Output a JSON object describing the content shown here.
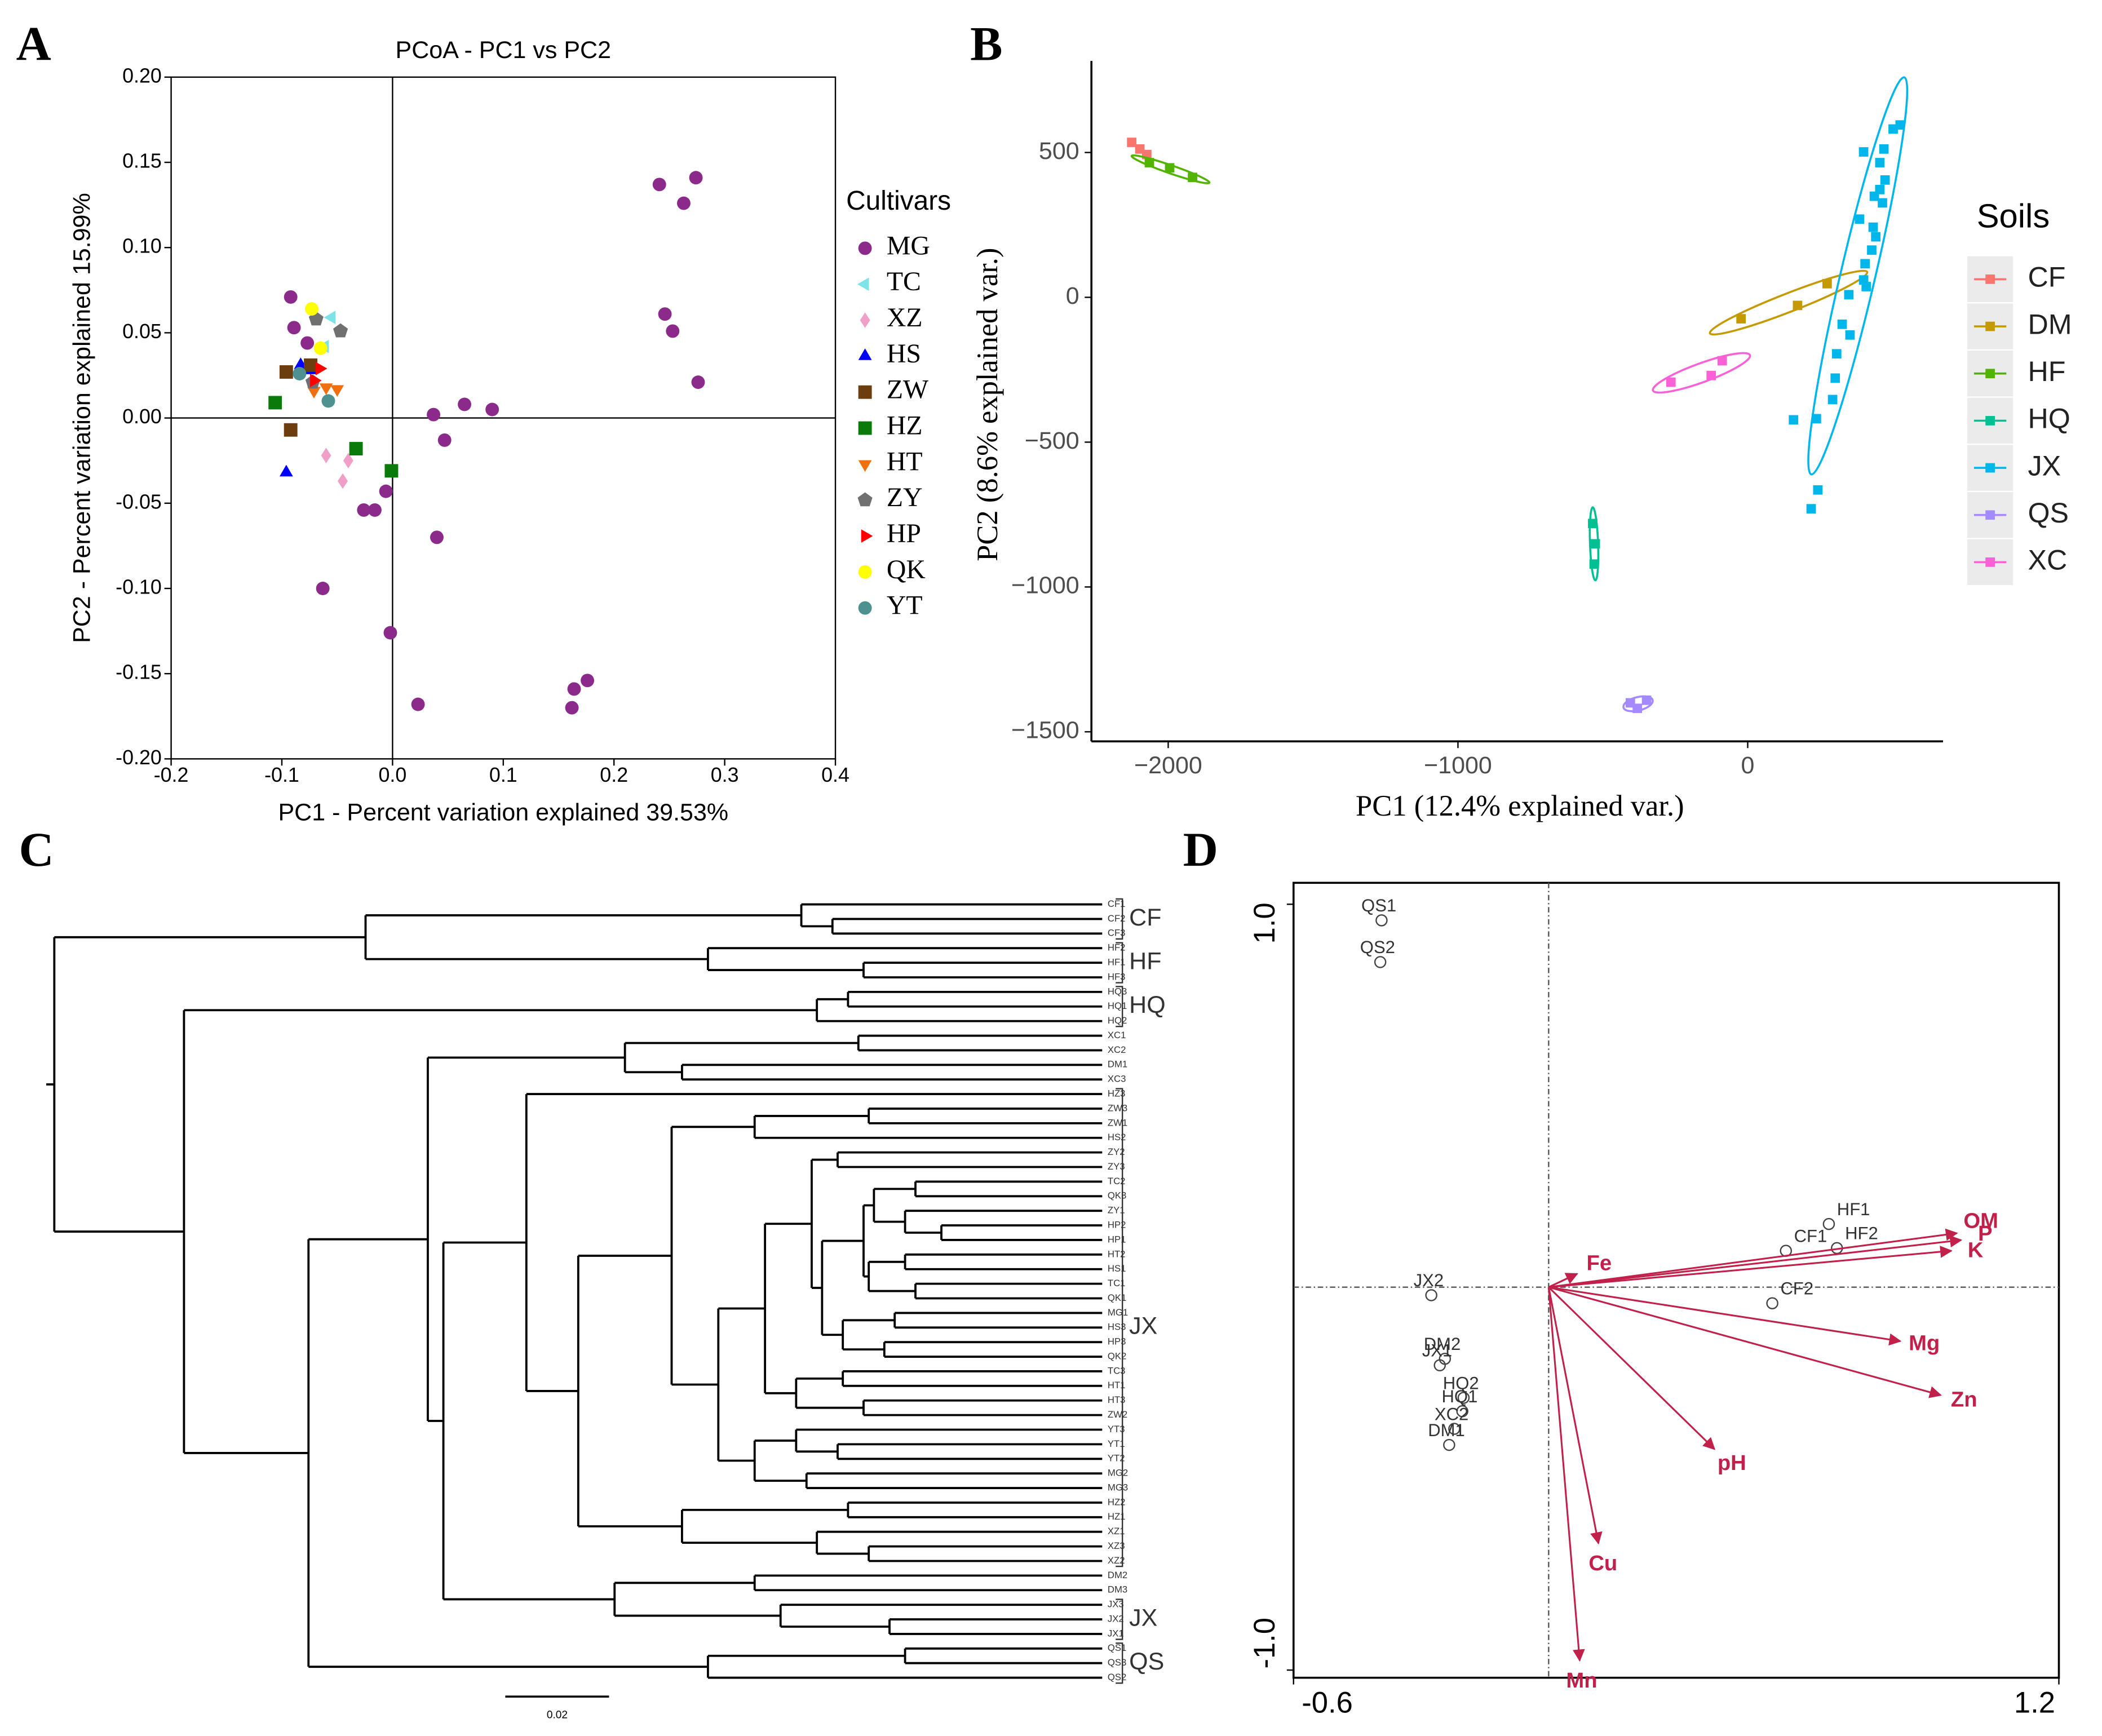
{
  "chart_data": [
    {
      "type": "scatter",
      "panel": "A",
      "title": "PCoA - PC1 vs PC2",
      "xlabel": "PC1 - Percent variation explained 39.53%",
      "ylabel": "PC2 - Percent variation explained 15.99%",
      "xlim": [
        -0.2,
        0.4
      ],
      "ylim": [
        -0.2,
        0.2
      ],
      "xticks": [
        -0.2,
        -0.1,
        {
          "value": 0,
          "label": "0.0"
        },
        0.1,
        0.2,
        0.3,
        0.4
      ],
      "yticks": [
        {
          "value": 0.2,
          "label": "0.20"
        },
        {
          "value": 0.15,
          "label": "0.15"
        },
        {
          "value": 0.1,
          "label": "0.10"
        },
        {
          "value": 0.05,
          "label": "0.05"
        },
        {
          "value": 0,
          "label": "0.00"
        },
        {
          "value": -0.05,
          "label": "-0.05"
        },
        {
          "value": -0.1,
          "label": "-0.10"
        },
        {
          "value": -0.15,
          "label": "-0.15"
        },
        {
          "value": -0.2,
          "label": "-0.20"
        }
      ],
      "legend_title": "Cultivars",
      "zero_lines": true,
      "series": [
        {
          "name": "MG",
          "color": "#8b2a8b",
          "marker": "circle",
          "x": [
            -0.092,
            -0.089,
            -0.077,
            0.241,
            0.274,
            0.263,
            0.246,
            0.253,
            0.276,
            0.037,
            0.065,
            0.09,
            0.047,
            -0.026,
            -0.016,
            -0.006,
            0.04,
            -0.063,
            -0.002,
            0.023,
            0.164,
            0.176,
            0.162
          ],
          "y": [
            0.071,
            0.053,
            0.044,
            0.137,
            0.141,
            0.126,
            0.061,
            0.051,
            0.021,
            0.002,
            0.008,
            0.005,
            -0.013,
            -0.054,
            -0.054,
            -0.043,
            -0.07,
            -0.1,
            -0.126,
            -0.168,
            -0.159,
            -0.154,
            -0.17
          ]
        },
        {
          "name": "TC",
          "color": "#7de3e8",
          "marker": "triangle-left",
          "x": [
            -0.055,
            -0.061
          ],
          "y": [
            0.059,
            0.042
          ]
        },
        {
          "name": "XZ",
          "color": "#f0a0c8",
          "marker": "diamond",
          "x": [
            -0.06,
            -0.04,
            -0.045
          ],
          "y": [
            -0.022,
            -0.025,
            -0.037
          ]
        },
        {
          "name": "HS",
          "color": "#0000ff",
          "marker": "triangle-up",
          "x": [
            -0.096,
            -0.083,
            -0.074
          ],
          "y": [
            -0.032,
            0.031,
            0.028
          ]
        },
        {
          "name": "ZW",
          "color": "#6b3d0f",
          "marker": "square",
          "x": [
            -0.096,
            -0.092,
            -0.074
          ],
          "y": [
            0.027,
            -0.007,
            0.031
          ]
        },
        {
          "name": "HZ",
          "color": "#0a7a0a",
          "marker": "square",
          "x": [
            -0.106,
            -0.033,
            -0.001
          ],
          "y": [
            0.009,
            -0.018,
            -0.031
          ]
        },
        {
          "name": "HT",
          "color": "#f07010",
          "marker": "triangle-down",
          "x": [
            -0.071,
            -0.06,
            -0.05
          ],
          "y": [
            0.016,
            0.018,
            0.017
          ]
        },
        {
          "name": "ZY",
          "color": "#707070",
          "marker": "pentagon",
          "x": [
            -0.069,
            -0.047,
            -0.072
          ],
          "y": [
            0.058,
            0.051,
            0.021
          ]
        },
        {
          "name": "HP",
          "color": "#ff0000",
          "marker": "triangle-right",
          "x": [
            -0.066,
            -0.071
          ],
          "y": [
            0.029,
            0.022
          ]
        },
        {
          "name": "QK",
          "color": "#ffff00",
          "marker": "circle",
          "x": [
            -0.073,
            -0.065
          ],
          "y": [
            0.064,
            0.041
          ]
        },
        {
          "name": "YT",
          "color": "#4f9090",
          "marker": "circle",
          "x": [
            -0.058,
            -0.084
          ],
          "y": [
            0.01,
            0.026
          ]
        }
      ]
    },
    {
      "type": "scatter-ellipse",
      "panel": "B",
      "xlabel": "PC1 (12.4% explained var.)",
      "ylabel": "PC2 (8.6% explained var.)",
      "xlim": [
        -2265,
        674
      ],
      "ylim": [
        -1533,
        816
      ],
      "xticks": [
        {
          "value": -2000,
          "label": "−2000"
        },
        {
          "value": -1000,
          "label": "−1000"
        },
        0
      ],
      "yticks": [
        500,
        0,
        {
          "value": -500,
          "label": "−500"
        },
        {
          "value": -1000,
          "label": "−1000"
        },
        {
          "value": -1500,
          "label": "−1500"
        }
      ],
      "legend_title": "Soils",
      "series": [
        {
          "name": "CF",
          "color": "#f8766d",
          "ellipse": false,
          "x": [
            -2126,
            -2098,
            -2074
          ],
          "y": [
            535,
            512,
            493
          ]
        },
        {
          "name": "DM",
          "color": "#c49a00",
          "ellipse": true,
          "x": [
            -23,
            172,
            274
          ],
          "y": [
            -74,
            -28,
            47
          ]
        },
        {
          "name": "HF",
          "color": "#53b400",
          "ellipse": true,
          "x": [
            -2065,
            -1995,
            -1916
          ],
          "y": [
            465,
            447,
            414
          ]
        },
        {
          "name": "HQ",
          "color": "#00c094",
          "ellipse": true,
          "x": [
            -535,
            -526,
            -530
          ],
          "y": [
            -781,
            -851,
            -921
          ]
        },
        {
          "name": "JX",
          "color": "#00b6eb",
          "ellipse": true,
          "x": [
            400,
            470,
            502,
            526,
            456,
            474,
            437,
            386,
            433,
            442,
            428,
            405,
            400,
            349,
            409,
            326,
            353,
            307,
            302,
            293,
            158,
            237,
            242,
            219,
            456,
            465
          ],
          "y": [
            502,
            512,
            581,
            595,
            465,
            405,
            349,
            270,
            242,
            209,
            163,
            116,
            60,
            9,
            37,
            -93,
            -130,
            -195,
            -279,
            -353,
            -423,
            -419,
            -665,
            -730,
            372,
            326
          ]
        },
        {
          "name": "QS",
          "color": "#a58aff",
          "ellipse": true,
          "x": [
            -381,
            -349,
            -405
          ],
          "y": [
            -1419,
            -1391,
            -1400
          ]
        },
        {
          "name": "XC",
          "color": "#fb61d7",
          "ellipse": true,
          "x": [
            -265,
            -126,
            -88
          ],
          "y": [
            -293,
            -270,
            -219
          ]
        }
      ]
    },
    {
      "type": "dendrogram",
      "panel": "C",
      "scale": 0.02,
      "groups": [
        "CF",
        "HF",
        "HQ",
        "JX",
        "JX",
        "QS"
      ],
      "tree": [
        0.202,
        [
          0.142,
          [
            0.058,
            "CF1",
            [
              0.052,
              "CF2",
              "CF3"
            ]
          ],
          [
            0.076,
            "HF2",
            [
              0.046,
              "HF1",
              "HF3"
            ]
          ]
        ],
        [
          0.177,
          [
            0.055,
            [
              0.049,
              "HQ3",
              "HQ1"
            ],
            "HQ2"
          ],
          [
            0.153,
            [
              0.13,
              [
                0.092,
                [
                  0.047,
                  "XC1",
                  "XC2"
                ],
                [
                  0.081,
                  "DM1",
                  "XC3"
                ]
              ],
              [
                0.127,
                [
                  0.111,
                  "HZ3",
                  [
                    0.101,
                    [
                      0.083,
                      [
                        0.067,
                        [
                          0.045,
                          "ZW3",
                          "ZW1"
                        ],
                        "HS2"
                      ],
                      [
                        0.074,
                        [
                          0.065,
                          [
                            0.056,
                            [
                              0.051,
                              "ZY2",
                              "ZY3"
                            ],
                            [
                              0.054,
                              [
                                0.046,
                                [
                                  0.044,
                                  [
                                    0.036,
                                    "TC2",
                                    "QK3"
                                  ],
                                  [
                                    0.038,
                                    "ZY1",
                                    [
                                      0.031,
                                      "HP2",
                                      "HP1"
                                    ]
                                  ]
                                ],
                                [
                                  0.045,
                                  [
                                    0.038,
                                    "HT2",
                                    "HS1"
                                  ],
                                  [
                                    0.036,
                                    "TC1",
                                    "QK1"
                                  ]
                                ]
                              ],
                              [
                                0.05,
                                [
                                  0.04,
                                  "MG1",
                                  "HS3"
                                ],
                                [
                                  0.042,
                                  "HP3",
                                  "QK2"
                                ]
                              ]
                            ]
                          ],
                          [
                            0.059,
                            [
                              0.05,
                              "TC3",
                              "HT1"
                            ],
                            [
                              0.046,
                              "HT3",
                              "ZW2"
                            ]
                          ]
                        ],
                        [
                          0.067,
                          [
                            0.059,
                            "YT3",
                            [
                              0.051,
                              "YT1",
                              "YT2"
                            ]
                          ],
                          [
                            0.057,
                            "MG2",
                            "MG3"
                          ]
                        ]
                      ]
                    ],
                    [
                      0.081,
                      [
                        0.049,
                        "HZ2",
                        "HZ1"
                      ],
                      [
                        0.055,
                        "XZ1",
                        [
                          0.045,
                          "XZ3",
                          "XZ2"
                        ]
                      ]
                    ]
                  ]
                ],
                [
                  0.094,
                  [
                    0.067,
                    "DM2",
                    "DM3"
                  ],
                  [
                    0.062,
                    "JX3",
                    [
                      0.041,
                      "JX2",
                      "JX1"
                    ]
                  ]
                ]
              ]
            ],
            [
              0.076,
              [
                0.038,
                "QS1",
                "QS3"
              ],
              "QS2"
            ]
          ]
        ]
      ]
    },
    {
      "type": "biplot",
      "panel": "D",
      "xlim": [
        -0.6,
        1.2
      ],
      "ylim": [
        -1.02,
        1.056
      ],
      "xticks": [
        -0.6,
        1.2
      ],
      "yticks": [
        {
          "value": 1,
          "label": "1.0"
        },
        {
          "value": -1,
          "label": "-1.0"
        }
      ],
      "zero_lines": true,
      "points": {
        "labels": [
          "QS1",
          "QS2",
          "JX2",
          "DM2",
          "JX1",
          "HQ2",
          "HQ1",
          "XC2",
          "DM1",
          "HF1",
          "CF1",
          "HF2",
          "CF2"
        ],
        "x": [
          -0.393,
          -0.396,
          -0.276,
          -0.244,
          -0.256,
          -0.2,
          -0.203,
          -0.222,
          -0.234,
          0.659,
          0.558,
          0.678,
          0.526
        ],
        "y": [
          0.958,
          0.849,
          -0.021,
          -0.187,
          -0.204,
          -0.289,
          -0.324,
          -0.37,
          -0.412,
          0.165,
          0.095,
          0.102,
          -0.042
        ]
      },
      "arrow_color": "#c0204a",
      "arrows": {
        "names": [
          "OM",
          "P",
          "K",
          "Fe",
          "Mg",
          "Zn",
          "pH",
          "Cu",
          "Mn"
        ],
        "x": [
          0.96,
          0.97,
          0.947,
          0.067,
          0.827,
          0.922,
          0.39,
          0.117,
          0.073
        ],
        "y": [
          0.141,
          0.123,
          0.095,
          0.035,
          -0.141,
          -0.282,
          -0.423,
          -0.669,
          -0.975
        ]
      }
    }
  ]
}
